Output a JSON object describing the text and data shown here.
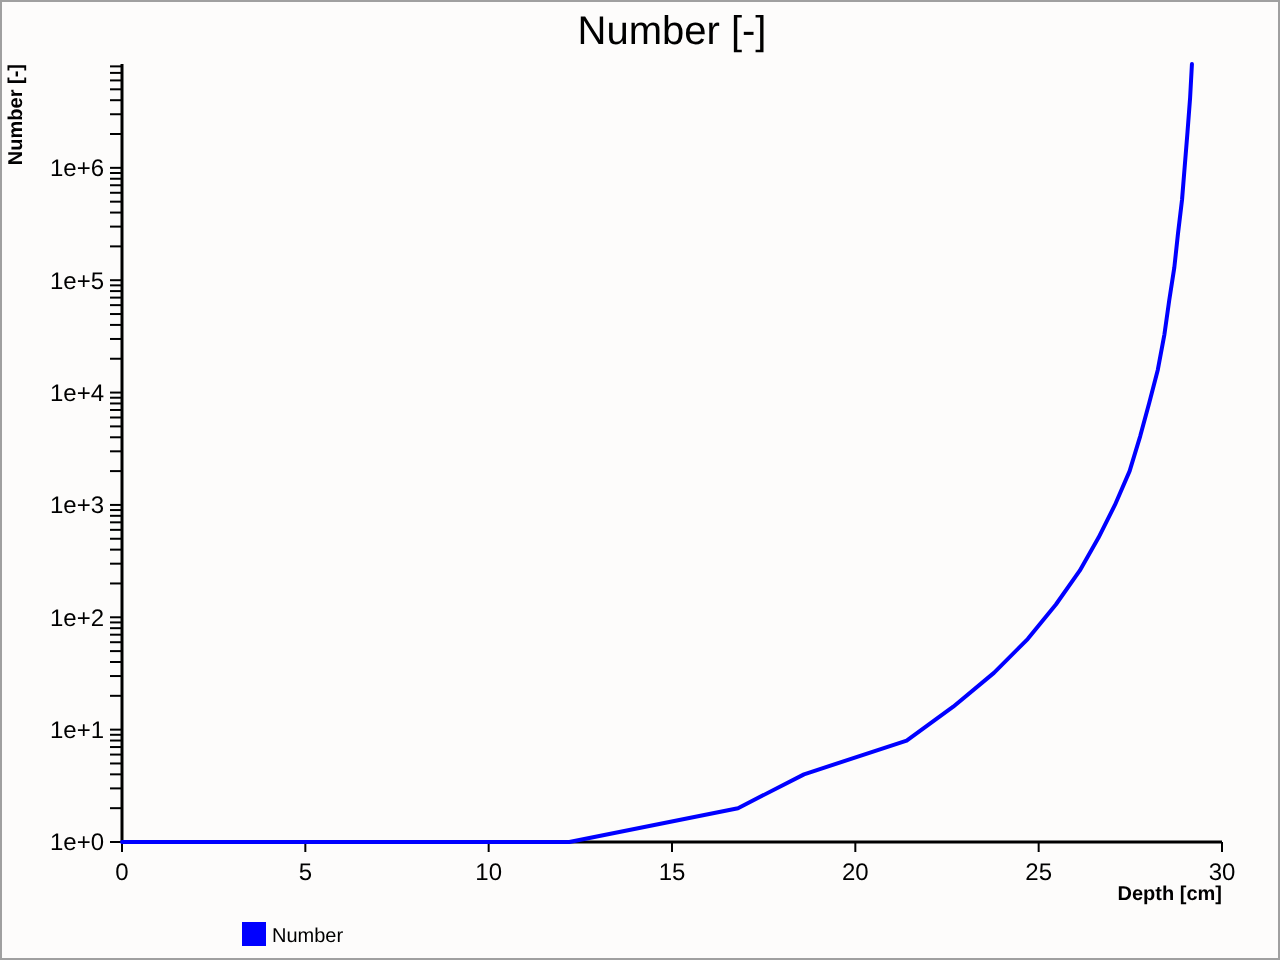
{
  "chart_data": {
    "type": "line",
    "title": "Number [-]",
    "xlabel": "Depth [cm]",
    "ylabel": "Number [-]",
    "xlim": [
      0,
      30
    ],
    "xticks": [
      0,
      5,
      10,
      15,
      20,
      25,
      30
    ],
    "ylim": [
      1,
      8400000
    ],
    "log": "y",
    "yticks": [
      {
        "value": 1,
        "label": "1e+0"
      },
      {
        "value": 2,
        "label": null
      },
      {
        "value": 3,
        "label": null
      },
      {
        "value": 4,
        "label": null
      },
      {
        "value": 5,
        "label": null
      },
      {
        "value": 6,
        "label": null
      },
      {
        "value": 7,
        "label": null
      },
      {
        "value": 8,
        "label": null
      },
      {
        "value": 9,
        "label": null
      },
      {
        "value": 10,
        "label": "1e+1"
      },
      {
        "value": 20,
        "label": null
      },
      {
        "value": 30,
        "label": null
      },
      {
        "value": 40,
        "label": null
      },
      {
        "value": 50,
        "label": null
      },
      {
        "value": 60,
        "label": null
      },
      {
        "value": 70,
        "label": null
      },
      {
        "value": 80,
        "label": null
      },
      {
        "value": 90,
        "label": null
      },
      {
        "value": 100,
        "label": "1e+2"
      },
      {
        "value": 200,
        "label": null
      },
      {
        "value": 300,
        "label": null
      },
      {
        "value": 400,
        "label": null
      },
      {
        "value": 500,
        "label": null
      },
      {
        "value": 600,
        "label": null
      },
      {
        "value": 700,
        "label": null
      },
      {
        "value": 800,
        "label": null
      },
      {
        "value": 900,
        "label": null
      },
      {
        "value": 1000,
        "label": "1e+3"
      },
      {
        "value": 2000,
        "label": null
      },
      {
        "value": 3000,
        "label": null
      },
      {
        "value": 4000,
        "label": null
      },
      {
        "value": 5000,
        "label": null
      },
      {
        "value": 6000,
        "label": null
      },
      {
        "value": 7000,
        "label": null
      },
      {
        "value": 8000,
        "label": null
      },
      {
        "value": 9000,
        "label": null
      },
      {
        "value": 10000,
        "label": "1e+4"
      },
      {
        "value": 20000,
        "label": null
      },
      {
        "value": 30000,
        "label": null
      },
      {
        "value": 40000,
        "label": null
      },
      {
        "value": 50000,
        "label": null
      },
      {
        "value": 60000,
        "label": null
      },
      {
        "value": 70000,
        "label": null
      },
      {
        "value": 80000,
        "label": null
      },
      {
        "value": 90000,
        "label": null
      },
      {
        "value": 100000,
        "label": "1e+5"
      },
      {
        "value": 200000,
        "label": null
      },
      {
        "value": 300000,
        "label": null
      },
      {
        "value": 400000,
        "label": null
      },
      {
        "value": 500000,
        "label": null
      },
      {
        "value": 600000,
        "label": null
      },
      {
        "value": 700000,
        "label": null
      },
      {
        "value": 800000,
        "label": null
      },
      {
        "value": 900000,
        "label": null
      },
      {
        "value": 1000000,
        "label": "1e+6"
      },
      {
        "value": 2000000,
        "label": null
      },
      {
        "value": 3000000,
        "label": null
      },
      {
        "value": 4000000,
        "label": null
      },
      {
        "value": 5000000,
        "label": null
      },
      {
        "value": 6000000,
        "label": null
      },
      {
        "value": 7000000,
        "label": null
      },
      {
        "value": 8000000,
        "label": null
      }
    ],
    "legend": "bottom left",
    "line_style": "solid",
    "series": [
      {
        "name": "Number",
        "color": "#0000ff",
        "x": [
          0,
          12.2,
          16.8,
          18.6,
          21.4,
          22.67,
          23.78,
          24.7,
          25.47,
          26.12,
          26.63,
          27.08,
          27.48,
          27.77,
          28.02,
          28.25,
          28.43,
          28.56,
          28.7,
          28.8,
          28.91,
          28.98,
          29.06,
          29.13,
          29.18
        ],
        "values": [
          1,
          1,
          2,
          4,
          8,
          16,
          32,
          64,
          130,
          260,
          510,
          1000,
          2000,
          4100,
          8200,
          16000,
          33000,
          66000,
          130000,
          260000,
          520000,
          1000000,
          2100000,
          4200000,
          8400000
        ]
      }
    ]
  }
}
